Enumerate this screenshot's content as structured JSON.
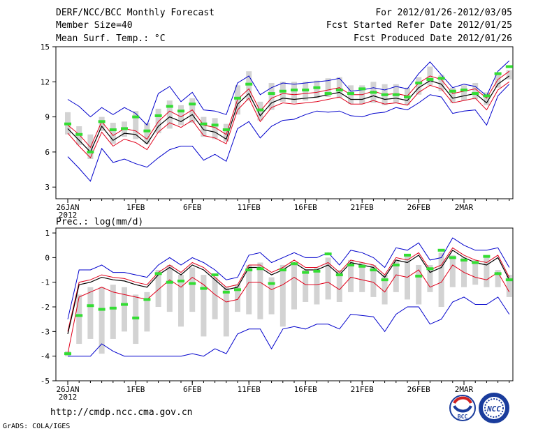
{
  "header": {
    "title": "DERF/NCC/BCC Monthly Forecast",
    "member_size": "Member Size=40",
    "variable": "Mean Surf. Temp.: °C",
    "period": "For 2012/01/26-2012/03/05",
    "start_date": "Fcst Started Refer Date 2012/01/25",
    "produced_date": "Fcst Produced Date 2012/01/26"
  },
  "footer": {
    "url": "http://cmdp.ncc.cma.gov.cn",
    "grads": "GrADS: COLA/IGES",
    "logo_bcc": "BCC",
    "logo_ncc": "NCC"
  },
  "colors": {
    "ensemble_mean": "#000000",
    "std_band": "#e0001a",
    "extreme_band": "#0000cc",
    "median_marker": "#33dd33",
    "box": "#d3d3d3"
  },
  "chart_data": [
    {
      "type": "line",
      "title": "Mean Surf. Temp.: °C",
      "x_tick_labels": [
        "26JAN",
        "1FEB",
        "6FEB",
        "11FEB",
        "16FEB",
        "21FEB",
        "26FEB",
        "2MAR"
      ],
      "x_tick_days": [
        0,
        6,
        11,
        16,
        21,
        26,
        31,
        35
      ],
      "x_sublabel": "2012",
      "ylim": [
        2,
        15
      ],
      "yticks": [
        3,
        6,
        9,
        12,
        15
      ],
      "days": [
        0,
        1,
        2,
        3,
        4,
        5,
        6,
        7,
        8,
        9,
        10,
        11,
        12,
        13,
        14,
        15,
        16,
        17,
        18,
        19,
        20,
        21,
        22,
        23,
        24,
        25,
        26,
        27,
        28,
        29,
        30,
        31,
        32,
        33,
        34,
        35,
        36,
        37,
        38,
        39
      ],
      "series": [
        {
          "name": "mean",
          "values": [
            8.0,
            7.0,
            6.0,
            8.2,
            7.0,
            7.6,
            7.5,
            6.7,
            8.2,
            9.0,
            8.6,
            9.2,
            7.9,
            7.7,
            7.1,
            10.1,
            11.0,
            9.1,
            10.2,
            10.6,
            10.5,
            10.6,
            10.7,
            10.9,
            11.1,
            10.5,
            10.5,
            10.8,
            10.5,
            10.6,
            10.4,
            11.5,
            12.1,
            11.8,
            10.6,
            10.8,
            11.0,
            10.2,
            11.8,
            12.5
          ]
        },
        {
          "name": "upper_std",
          "values": [
            8.3,
            7.5,
            6.4,
            8.6,
            7.4,
            8.0,
            7.8,
            7.1,
            8.6,
            9.5,
            9.0,
            9.6,
            8.3,
            8.1,
            7.5,
            10.5,
            11.4,
            9.5,
            10.6,
            11.0,
            10.9,
            11.0,
            11.1,
            11.3,
            11.5,
            10.9,
            10.9,
            11.2,
            10.9,
            11.0,
            10.8,
            11.9,
            12.5,
            12.2,
            11.0,
            11.2,
            11.4,
            10.6,
            12.2,
            12.9
          ]
        },
        {
          "name": "lower_std",
          "values": [
            7.6,
            6.5,
            5.5,
            7.7,
            6.5,
            7.1,
            6.8,
            6.2,
            7.7,
            8.5,
            8.1,
            8.7,
            7.4,
            7.2,
            6.7,
            9.6,
            10.6,
            8.6,
            9.8,
            10.2,
            10.1,
            10.2,
            10.3,
            10.5,
            10.7,
            10.1,
            10.1,
            10.4,
            10.1,
            10.2,
            10.0,
            11.1,
            11.7,
            11.4,
            10.2,
            10.4,
            10.6,
            9.6,
            11.3,
            12.0
          ]
        },
        {
          "name": "upper_extreme",
          "values": [
            10.5,
            9.9,
            9.0,
            9.8,
            9.2,
            9.8,
            9.3,
            8.3,
            11.0,
            11.6,
            10.3,
            11.1,
            9.6,
            9.5,
            9.2,
            11.9,
            12.5,
            10.9,
            11.5,
            11.9,
            11.8,
            11.9,
            12.0,
            12.1,
            12.3,
            11.2,
            11.3,
            11.5,
            11.3,
            11.6,
            11.4,
            12.7,
            13.7,
            12.6,
            11.5,
            11.8,
            11.6,
            10.8,
            12.9,
            13.8
          ]
        },
        {
          "name": "lower_extreme",
          "values": [
            5.6,
            4.6,
            3.5,
            6.3,
            5.1,
            5.4,
            5.0,
            4.7,
            5.5,
            6.2,
            6.5,
            6.5,
            5.3,
            5.8,
            5.2,
            8.0,
            8.6,
            7.2,
            8.2,
            8.7,
            8.8,
            9.2,
            9.5,
            9.4,
            9.5,
            9.1,
            9.0,
            9.3,
            9.4,
            9.8,
            9.6,
            10.2,
            10.9,
            10.7,
            9.3,
            9.5,
            9.6,
            8.3,
            10.8,
            11.8
          ]
        },
        {
          "name": "median",
          "values": [
            8.4,
            7.5,
            6.0,
            8.6,
            7.9,
            8.0,
            9.0,
            7.8,
            9.1,
            9.9,
            9.5,
            10.1,
            8.4,
            8.3,
            7.9,
            10.6,
            11.8,
            9.6,
            11.0,
            11.2,
            11.3,
            11.3,
            11.5,
            11.0,
            11.3,
            11.0,
            11.4,
            11.1,
            10.9,
            10.9,
            10.7,
            11.9,
            12.2,
            12.3,
            11.2,
            11.3,
            11.0,
            10.8,
            12.7,
            13.3
          ]
        },
        {
          "name": "box_top",
          "values": [
            9.4,
            8.2,
            7.5,
            9.0,
            8.5,
            8.6,
            9.5,
            8.5,
            9.7,
            10.4,
            10.0,
            10.6,
            9.0,
            8.9,
            8.4,
            11.7,
            12.9,
            10.3,
            11.9,
            12.0,
            12.0,
            12.0,
            12.1,
            12.3,
            12.4,
            11.7,
            11.7,
            12.0,
            11.8,
            11.8,
            11.5,
            12.4,
            13.3,
            12.6,
            11.5,
            11.7,
            11.9,
            11.1,
            12.6,
            13.0
          ]
        },
        {
          "name": "box_bottom",
          "values": [
            7.5,
            6.6,
            5.4,
            7.8,
            6.7,
            7.3,
            7.1,
            6.7,
            7.6,
            8.0,
            8.3,
            8.5,
            7.3,
            7.1,
            6.9,
            9.2,
            10.4,
            8.7,
            9.6,
            10.3,
            10.2,
            10.4,
            10.6,
            10.7,
            10.6,
            10.1,
            10.1,
            10.2,
            10.0,
            10.2,
            10.0,
            10.9,
            11.7,
            11.2,
            10.2,
            10.4,
            10.5,
            10.0,
            11.5,
            12.2
          ]
        }
      ]
    },
    {
      "type": "line",
      "title": "Prec.: log(mm/d)",
      "x_tick_labels": [
        "26JAN",
        "1FEB",
        "6FEB",
        "11FEB",
        "16FEB",
        "21FEB",
        "26FEB",
        "2MAR"
      ],
      "x_tick_days": [
        0,
        6,
        11,
        16,
        21,
        26,
        31,
        35
      ],
      "x_sublabel": "2012",
      "ylim": [
        -5,
        1.2
      ],
      "yticks": [
        -5,
        -4,
        -3,
        -2,
        -1,
        0,
        1
      ],
      "days": [
        0,
        1,
        2,
        3,
        4,
        5,
        6,
        7,
        8,
        9,
        10,
        11,
        12,
        13,
        14,
        15,
        16,
        17,
        18,
        19,
        20,
        21,
        22,
        23,
        24,
        25,
        26,
        27,
        28,
        29,
        30,
        31,
        32,
        33,
        34,
        35,
        36,
        37,
        38,
        39
      ],
      "series": [
        {
          "name": "mean",
          "values": [
            -3.1,
            -1.1,
            -1.0,
            -0.8,
            -0.9,
            -0.95,
            -1.1,
            -1.2,
            -0.7,
            -0.4,
            -0.7,
            -0.3,
            -0.5,
            -0.9,
            -1.3,
            -1.2,
            -0.4,
            -0.4,
            -0.7,
            -0.5,
            -0.2,
            -0.5,
            -0.5,
            -0.3,
            -0.7,
            -0.2,
            -0.3,
            -0.4,
            -0.8,
            -0.1,
            -0.2,
            0.1,
            -0.6,
            -0.4,
            0.3,
            0.0,
            -0.2,
            -0.3,
            0.0,
            -0.9
          ]
        },
        {
          "name": "upper_std",
          "values": [
            -3.0,
            -1.0,
            -0.9,
            -0.7,
            -0.8,
            -0.85,
            -1.0,
            -1.1,
            -0.6,
            -0.3,
            -0.6,
            -0.2,
            -0.4,
            -0.8,
            -1.2,
            -1.1,
            -0.3,
            -0.3,
            -0.6,
            -0.4,
            -0.1,
            -0.4,
            -0.4,
            -0.2,
            -0.6,
            -0.1,
            -0.2,
            -0.3,
            -0.7,
            0.0,
            -0.1,
            0.2,
            -0.5,
            -0.3,
            0.4,
            0.1,
            -0.1,
            -0.2,
            0.1,
            -0.8
          ]
        },
        {
          "name": "lower_std",
          "values": [
            -3.9,
            -1.6,
            -1.4,
            -1.2,
            -1.4,
            -1.5,
            -1.6,
            -1.7,
            -1.3,
            -0.9,
            -1.2,
            -0.8,
            -1.1,
            -1.5,
            -1.8,
            -1.7,
            -1.0,
            -1.0,
            -1.3,
            -1.1,
            -0.8,
            -1.1,
            -1.1,
            -1.0,
            -1.3,
            -0.8,
            -0.9,
            -1.0,
            -1.4,
            -0.7,
            -0.8,
            -0.5,
            -1.2,
            -1.0,
            -0.3,
            -0.6,
            -0.8,
            -0.9,
            -0.6,
            -1.4
          ]
        },
        {
          "name": "upper_extreme",
          "values": [
            -2.5,
            -0.5,
            -0.5,
            -0.3,
            -0.6,
            -0.6,
            -0.7,
            -0.8,
            -0.3,
            0.0,
            -0.3,
            0.0,
            -0.2,
            -0.5,
            -0.9,
            -0.8,
            0.1,
            0.2,
            -0.2,
            0.0,
            0.2,
            0.0,
            0.0,
            0.2,
            -0.3,
            0.3,
            0.2,
            0.0,
            -0.4,
            0.4,
            0.3,
            0.6,
            -0.1,
            0.0,
            0.8,
            0.5,
            0.3,
            0.3,
            0.4,
            -0.4
          ]
        },
        {
          "name": "lower_extreme",
          "values": [
            -4.0,
            -4.0,
            -4.0,
            -3.5,
            -3.8,
            -4.0,
            -4.0,
            -4.0,
            -4.0,
            -4.0,
            -4.0,
            -3.9,
            -4.0,
            -3.7,
            -3.9,
            -3.1,
            -2.9,
            -2.9,
            -3.7,
            -2.9,
            -2.8,
            -2.9,
            -2.7,
            -2.7,
            -2.9,
            -2.3,
            -2.35,
            -2.4,
            -3.0,
            -2.3,
            -2.0,
            -2.0,
            -2.7,
            -2.5,
            -1.8,
            -1.6,
            -1.9,
            -1.9,
            -1.6,
            -2.3
          ]
        },
        {
          "name": "median",
          "values": [
            -3.9,
            -2.35,
            -1.95,
            -2.1,
            -2.05,
            -1.9,
            -2.45,
            -1.7,
            -0.65,
            -1.0,
            -0.95,
            -1.05,
            -1.25,
            -0.7,
            -1.4,
            -1.3,
            -0.5,
            -0.45,
            -1.05,
            -0.5,
            -0.25,
            -0.6,
            -0.55,
            0.15,
            -0.7,
            -0.3,
            -0.35,
            -0.5,
            -0.9,
            -0.3,
            0.1,
            -0.75,
            -0.45,
            0.3,
            0.0,
            -0.1,
            -0.2,
            0.05,
            -0.65,
            -0.9
          ]
        },
        {
          "name": "box_top",
          "values": [
            -3.8,
            -1.5,
            -1.2,
            -1.2,
            -1.1,
            -1.2,
            -1.5,
            -1.4,
            -0.5,
            -0.3,
            -0.7,
            -0.4,
            -0.7,
            -0.8,
            -1.2,
            -1.1,
            -0.3,
            -0.2,
            -0.8,
            -0.3,
            -0.2,
            -0.5,
            -0.4,
            0.0,
            -0.5,
            -0.1,
            -0.2,
            -0.3,
            -0.7,
            -0.1,
            0.1,
            -0.3,
            -0.3,
            0.2,
            0.1,
            0.0,
            -0.1,
            0.1,
            -0.5,
            -0.7
          ]
        },
        {
          "name": "box_bottom",
          "values": [
            -4.0,
            -3.5,
            -3.3,
            -3.9,
            -3.3,
            -3.0,
            -3.5,
            -3.0,
            -2.0,
            -2.2,
            -2.8,
            -2.2,
            -3.2,
            -2.5,
            -3.2,
            -2.2,
            -2.3,
            -2.5,
            -2.3,
            -2.8,
            -2.1,
            -1.8,
            -1.9,
            -1.7,
            -1.8,
            -1.4,
            -1.4,
            -1.6,
            -1.9,
            -1.4,
            -1.7,
            -1.9,
            -1.4,
            -2.0,
            -1.2,
            -1.2,
            -1.1,
            -1.2,
            -1.2,
            -1.6
          ]
        }
      ]
    }
  ]
}
